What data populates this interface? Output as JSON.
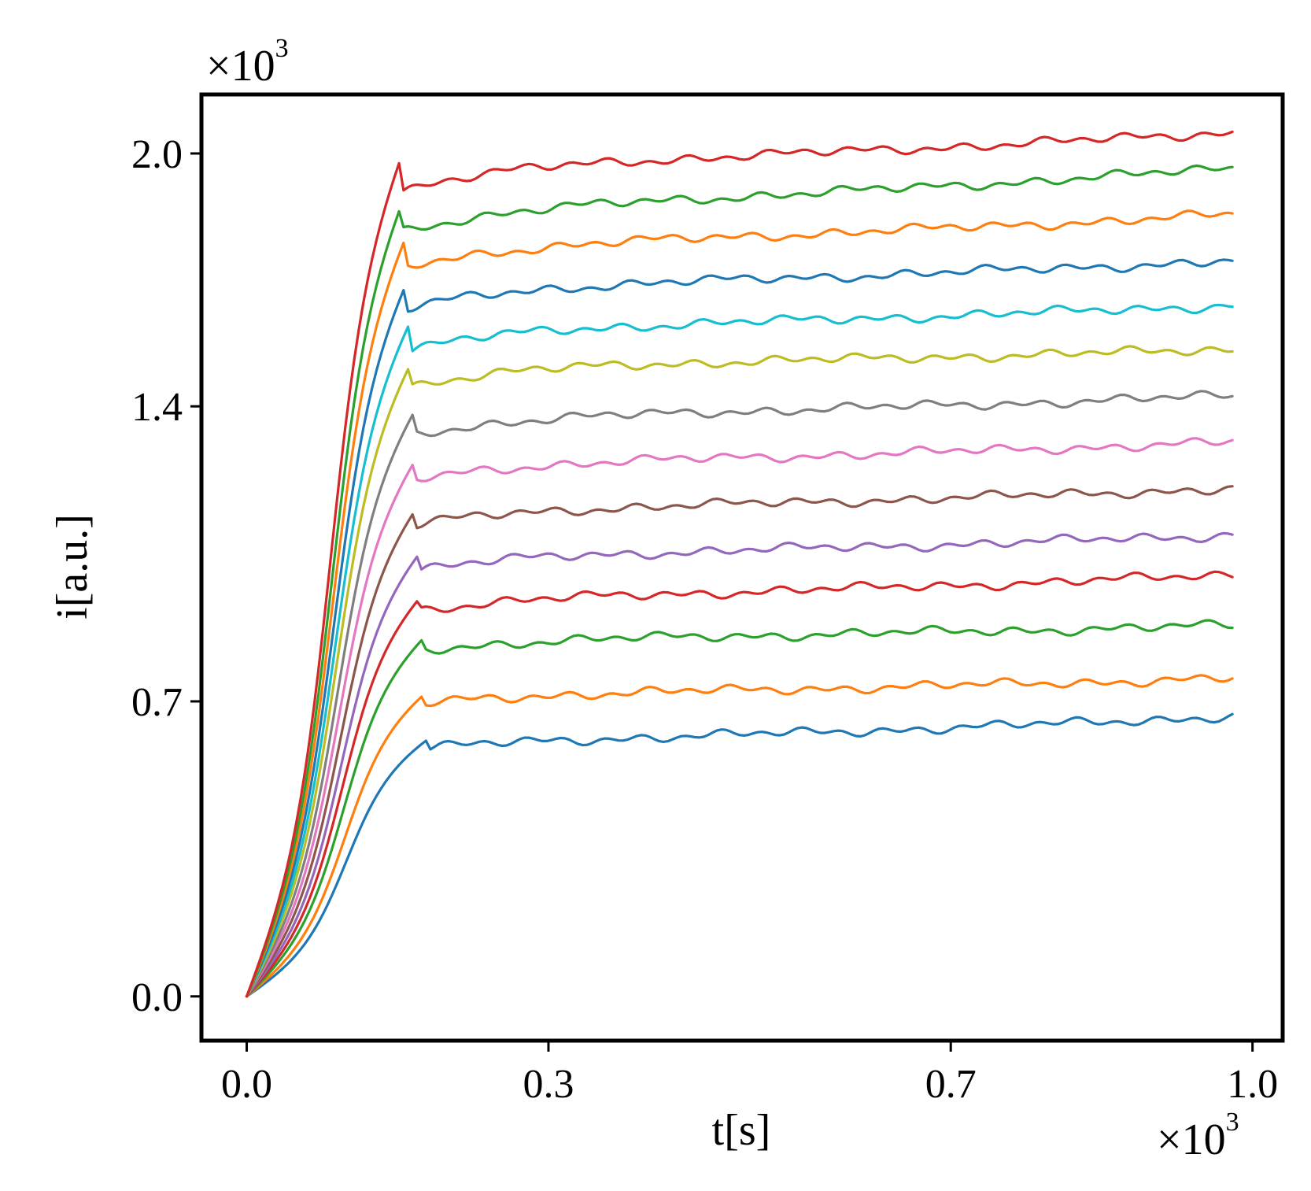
{
  "chart_data": {
    "type": "line",
    "xlabel": "t[s]",
    "ylabel": "i[a.u.]",
    "x_multiplier": {
      "base": "×10",
      "exponent": "3"
    },
    "y_multiplier": {
      "base": "×10",
      "exponent": "3"
    },
    "xlim": [
      -0.045,
      1.03
    ],
    "ylim": [
      -0.105,
      2.14
    ],
    "x_ticks": [
      {
        "value": 0.0,
        "label": "0.0"
      },
      {
        "value": 0.3,
        "label": "0.3"
      },
      {
        "value": 0.7,
        "label": "0.7"
      },
      {
        "value": 1.0,
        "label": "1.0"
      }
    ],
    "y_ticks": [
      {
        "value": 0.0,
        "label": "0.0"
      },
      {
        "value": 0.7,
        "label": "0.7"
      },
      {
        "value": 1.4,
        "label": "1.4"
      },
      {
        "value": 2.0,
        "label": "2.0"
      }
    ],
    "grid": false,
    "legend": "none",
    "x_end": 0.98,
    "rise_end_x": 0.18,
    "series": [
      {
        "color": "#1f77b4",
        "plateau": 0.61,
        "end": 0.665
      },
      {
        "color": "#ff7f0e",
        "plateau": 0.72,
        "end": 0.755
      },
      {
        "color": "#2ca02c",
        "plateau": 0.85,
        "end": 0.88
      },
      {
        "color": "#d62728",
        "plateau": 0.95,
        "end": 1.0
      },
      {
        "color": "#9467bd",
        "plateau": 1.05,
        "end": 1.095
      },
      {
        "color": "#8c564b",
        "plateau": 1.16,
        "end": 1.205
      },
      {
        "color": "#e377c2",
        "plateau": 1.27,
        "end": 1.315
      },
      {
        "color": "#7f7f7f",
        "plateau": 1.38,
        "end": 1.425
      },
      {
        "color": "#bcbd22",
        "plateau": 1.5,
        "end": 1.535
      },
      {
        "color": "#17becf",
        "plateau": 1.59,
        "end": 1.64
      },
      {
        "color": "#1f77b4",
        "plateau": 1.69,
        "end": 1.745
      },
      {
        "color": "#ff7f0e",
        "plateau": 1.79,
        "end": 1.855
      },
      {
        "color": "#2ca02c",
        "plateau": 1.88,
        "end": 1.965
      },
      {
        "color": "#d62728",
        "plateau": 1.98,
        "end": 2.05
      }
    ]
  }
}
